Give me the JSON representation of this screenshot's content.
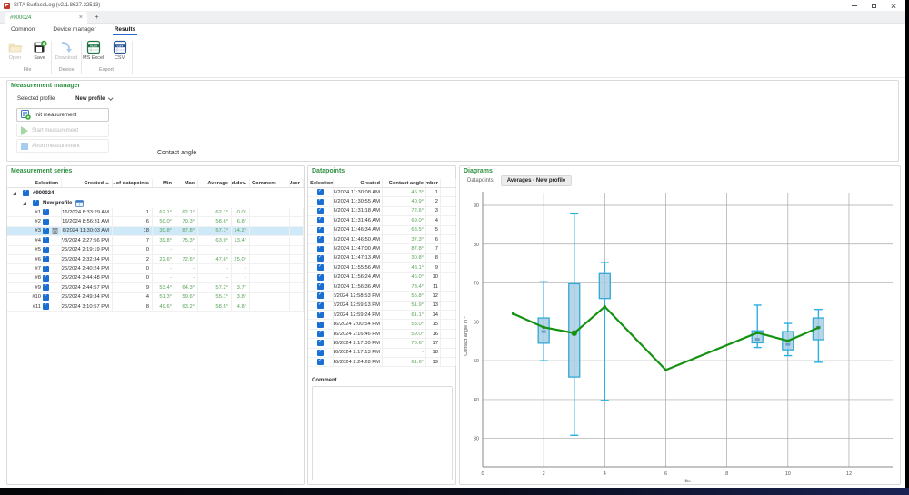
{
  "window": {
    "title": "SITA SurfaceLog (v2.1.8627.22513)"
  },
  "tabs": {
    "active_label": "#900024",
    "close_glyph": "×",
    "new_tab_glyph": "+"
  },
  "ribbon": {
    "tabs": [
      {
        "label": "Common",
        "active": false
      },
      {
        "label": "Device manager",
        "active": false
      },
      {
        "label": "Results",
        "active": true
      }
    ],
    "groups": [
      {
        "label": "File",
        "buttons": [
          {
            "label": "Open",
            "enabled": false
          },
          {
            "label": "Save",
            "enabled": true
          }
        ]
      },
      {
        "label": "Device",
        "buttons": [
          {
            "label": "Download",
            "enabled": false
          }
        ]
      },
      {
        "label": "Export",
        "buttons": [
          {
            "label": "MS Excel",
            "icon_text": "XLSX",
            "enabled": true
          },
          {
            "label": "CSV",
            "icon_text": "CSV",
            "enabled": true
          }
        ]
      }
    ]
  },
  "measurement_manager": {
    "title": "Measurement manager",
    "selected_profile_label": "Selected profile",
    "selected_profile_value": "New profile",
    "init_button": "Init measurement",
    "start_button": "Start measurement",
    "abort_button": "Abort measurement",
    "contact_angle_label": "Contact angle"
  },
  "series": {
    "title": "Measurement series",
    "columns": [
      "Selection",
      "Created",
      "No. of datapoints",
      "Min",
      "Max",
      "Average",
      "Std.dev.",
      "Comment",
      "User"
    ],
    "root_label": "#900024",
    "profile_label": "New profile",
    "rows": [
      {
        "id": "#1",
        "created": "4/16/2024 8:33:29 AM",
        "n": "1",
        "min": "62.1°",
        "max": "62.1°",
        "avg": "62.1°",
        "std": "0.0°",
        "selected": false
      },
      {
        "id": "#2",
        "created": "4/16/2024 8:56:31 AM",
        "n": "6",
        "min": "50.0°",
        "max": "70.3°",
        "avg": "58.6°",
        "std": "6.8°",
        "selected": false
      },
      {
        "id": "#3",
        "created": "4/16/2024 11:30:03 AM",
        "n": "18",
        "min": "30.8°",
        "max": "87.8°",
        "avg": "57.1°",
        "std": "14.2°",
        "selected": true
      },
      {
        "id": "#4",
        "created": "7/3/2024 2:27:56 PM",
        "n": "7",
        "min": "39.8°",
        "max": "75.3°",
        "avg": "63.9°",
        "std": "13.4°",
        "selected": false
      },
      {
        "id": "#5",
        "created": "7/26/2024 2:19:19 PM",
        "n": "0",
        "min": "-",
        "max": "-",
        "avg": "-",
        "std": "-",
        "selected": false
      },
      {
        "id": "#6",
        "created": "7/26/2024 2:32:34 PM",
        "n": "2",
        "min": "22.6°",
        "max": "72.6°",
        "avg": "47.6°",
        "std": "25.0°",
        "selected": false
      },
      {
        "id": "#7",
        "created": "7/26/2024 2:40:24 PM",
        "n": "0",
        "min": "-",
        "max": "-",
        "avg": "-",
        "std": "-",
        "selected": false
      },
      {
        "id": "#8",
        "created": "7/26/2024 2:44:48 PM",
        "n": "0",
        "min": "-",
        "max": "-",
        "avg": "-",
        "std": "-",
        "selected": false
      },
      {
        "id": "#9",
        "created": "7/26/2024 2:44:57 PM",
        "n": "9",
        "min": "53.4°",
        "max": "64.3°",
        "avg": "57.2°",
        "std": "3.7°",
        "selected": false
      },
      {
        "id": "#10",
        "created": "7/26/2024 2:49:34 PM",
        "n": "4",
        "min": "51.3°",
        "max": "59.6°",
        "avg": "55.1°",
        "std": "3.8°",
        "selected": false
      },
      {
        "id": "#11",
        "created": "7/26/2024 3:10:57 PM",
        "n": "8",
        "min": "49.6°",
        "max": "63.2°",
        "avg": "58.5°",
        "std": "4.8°",
        "selected": false
      }
    ]
  },
  "datapoints": {
    "title": "Datapoints",
    "columns": [
      "Selection",
      "Created",
      "Contact angle",
      "Number"
    ],
    "comment_label": "Comment",
    "rows": [
      {
        "created": "4/16/2024 11:30:08 AM",
        "angle": "45.3°",
        "number": "1"
      },
      {
        "created": "4/16/2024 11:30:55 AM",
        "angle": "40.9°",
        "number": "2"
      },
      {
        "created": "4/16/2024 11:31:18 AM",
        "angle": "72.6°",
        "number": "3"
      },
      {
        "created": "4/16/2024 11:31:46 AM",
        "angle": "69.0°",
        "number": "4"
      },
      {
        "created": "4/16/2024 11:46:34 AM",
        "angle": "63.5°",
        "number": "5"
      },
      {
        "created": "4/16/2024 11:46:50 AM",
        "angle": "37.3°",
        "number": "6"
      },
      {
        "created": "4/16/2024 11:47:00 AM",
        "angle": "87.8°",
        "number": "7"
      },
      {
        "created": "4/16/2024 11:47:13 AM",
        "angle": "30.8°",
        "number": "8"
      },
      {
        "created": "4/16/2024 11:55:56 AM",
        "angle": "48.1°",
        "number": "9"
      },
      {
        "created": "4/16/2024 11:56:24 AM",
        "angle": "46.0°",
        "number": "10"
      },
      {
        "created": "4/16/2024 11:56:36 AM",
        "angle": "73.4°",
        "number": "11"
      },
      {
        "created": "4/16/2024 12:58:53 PM",
        "angle": "55.8°",
        "number": "12"
      },
      {
        "created": "4/16/2024 12:59:13 PM",
        "angle": "51.9°",
        "number": "13"
      },
      {
        "created": "4/16/2024 12:59:24 PM",
        "angle": "61.1°",
        "number": "14"
      },
      {
        "created": "4/16/2024 2:00:54 PM",
        "angle": "53.0°",
        "number": "15"
      },
      {
        "created": "4/16/2024 2:16:46 PM",
        "angle": "59.0°",
        "number": "16"
      },
      {
        "created": "4/16/2024 2:17:00 PM",
        "angle": "70.6°",
        "number": "17"
      },
      {
        "created": "4/16/2024 2:17:13 PM",
        "angle": "-",
        "number": "18"
      },
      {
        "created": "4/16/2024 2:24:28 PM",
        "angle": "61.6°",
        "number": "19"
      }
    ]
  },
  "diagrams": {
    "title": "Diagrams",
    "tabs": [
      {
        "label": "Datapoints",
        "active": false
      },
      {
        "label": "Averages - New profile",
        "active": true
      }
    ]
  },
  "chart_data": {
    "type": "line",
    "subtype": "line-with-boxplots",
    "title": "Averages - New profile",
    "xlabel": "No.",
    "ylabel": "Contact angle in °",
    "xlim": [
      0,
      13.5
    ],
    "ylim": [
      22.5,
      94
    ],
    "xticks": [
      0,
      2,
      4,
      6,
      8,
      10,
      12
    ],
    "yticks": [
      30,
      40,
      50,
      60,
      70,
      80,
      90
    ],
    "grid": true,
    "legend": false,
    "line_series": {
      "name": "Average contact angle per measurement",
      "x": [
        1,
        2,
        3,
        4,
        6,
        9,
        10,
        11
      ],
      "y": [
        62.1,
        58.6,
        57.1,
        63.9,
        47.6,
        57.2,
        55.1,
        58.5
      ]
    },
    "boxes": [
      {
        "x": 2,
        "min": 50.0,
        "max": 70.3,
        "box_low": 54.5,
        "box_high": 61.0,
        "median": 57.5
      },
      {
        "x": 3,
        "min": 30.8,
        "max": 87.8,
        "box_low": 45.8,
        "box_high": 69.8,
        "median": null
      },
      {
        "x": 4,
        "min": 39.8,
        "max": 75.3,
        "box_low": 66.0,
        "box_high": 72.4,
        "median": null
      },
      {
        "x": 9,
        "min": 53.4,
        "max": 64.3,
        "box_low": 54.6,
        "box_high": 57.7,
        "median": 55.5
      },
      {
        "x": 10,
        "min": 51.3,
        "max": 59.6,
        "box_low": 52.8,
        "box_high": 57.5,
        "median": 54.2
      },
      {
        "x": 11,
        "min": 49.6,
        "max": 63.2,
        "box_low": 55.4,
        "box_high": 61.0,
        "median": 58.6
      }
    ],
    "highlight_point": {
      "x": 3,
      "y": 57.1
    },
    "colors": {
      "line": "#169213",
      "box_fill": "#a9cee3",
      "box_border": "#33a9d6",
      "whisker": "#2ab1e3",
      "grid": "#a8a8a8",
      "axis": "#888888",
      "median": "#6d9ec7"
    }
  },
  "brand": {
    "green": "#2e9140",
    "accent_blue": "#2a6bd3",
    "selection_blue": "#cfe9f8"
  }
}
